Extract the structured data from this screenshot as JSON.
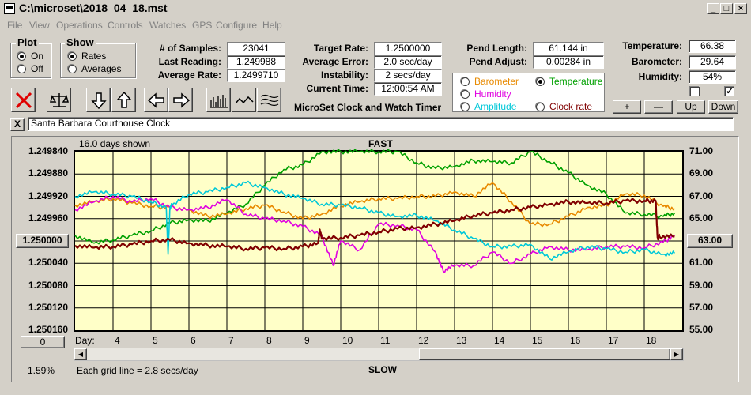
{
  "window": {
    "title": "C:\\microset\\2018_04_18.mst"
  },
  "menu": [
    "File",
    "View",
    "Operations",
    "Controls",
    "Watches",
    "GPS",
    "Configure",
    "Help"
  ],
  "plot_group": {
    "label": "Plot",
    "on": "On",
    "off": "Off",
    "selected": "On"
  },
  "show_group": {
    "label": "Show",
    "rates": "Rates",
    "averages": "Averages",
    "selected": "Rates"
  },
  "stats": {
    "samples_label": "# of Samples:",
    "samples": "23041",
    "last_reading_label": "Last Reading:",
    "last_reading": "1.249988",
    "avg_rate_label": "Average Rate:",
    "avg_rate": "1.2499710",
    "target_rate_label": "Target Rate:",
    "target_rate": "1.2500000",
    "avg_error_label": "Average Error:",
    "avg_error": "2.0 sec/day",
    "instability_label": "Instability:",
    "instability": "2 secs/day",
    "current_time_label": "Current Time:",
    "current_time": "12:00:54 AM",
    "pend_length_label": "Pend Length:",
    "pend_length": "61.144 in",
    "pend_adjust_label": "Pend Adjust:",
    "pend_adjust": "0.00284 in",
    "temperature_label": "Temperature:",
    "temperature": "66.38",
    "barometer_label": "Barometer:",
    "barometer": "29.64",
    "humidity_label": "Humidity:",
    "humidity": "54%"
  },
  "app_caption": "MicroSet Clock and Watch Timer",
  "sensor_options": {
    "barometer": "Barometer",
    "temperature": "Temperature",
    "humidity": "Humidity",
    "amplitude": "Amplitude",
    "clock_rate": "Clock rate",
    "selected": "Temperature",
    "colors": {
      "barometer": "#e88a00",
      "temperature": "#00a000",
      "humidity": "#e000e0",
      "amplitude": "#00c8d8",
      "clock_rate": "#800000"
    }
  },
  "side_buttons": {
    "plus": "+",
    "minus": "—",
    "up": "Up",
    "down": "Down"
  },
  "checkboxes": {
    "left": false,
    "right": true,
    "right_mark": "✓"
  },
  "clock_name": "Santa Barbara Courthouse Clock",
  "close_mark": "X",
  "plot": {
    "days_shown": "16.0 days shown",
    "fast": "FAST",
    "slow": "SLOW",
    "grid_note": "Each grid line = 2.8 secs/day",
    "percent": "1.59%",
    "day_label": "Day:",
    "left_button": "1.250000",
    "right_button": "63.00",
    "bottom_left_button": "0"
  },
  "chart_data": {
    "type": "line",
    "xlabel": "Day:",
    "x_ticks": [
      4,
      5,
      6,
      7,
      8,
      9,
      10,
      11,
      12,
      13,
      14,
      15,
      16,
      17,
      18
    ],
    "xlim": [
      3.0,
      19.0
    ],
    "y_left_ticks": [
      "1.249840",
      "1.249880",
      "1.249920",
      "1.249960",
      "1.250000",
      "1.250040",
      "1.250080",
      "1.250120",
      "1.250160"
    ],
    "ylim_left": [
      1.25016,
      1.24984
    ],
    "y_right_ticks": [
      "71.00",
      "69.00",
      "67.00",
      "65.00",
      "63.00",
      "61.00",
      "59.00",
      "57.00",
      "55.00"
    ],
    "ylim_right": [
      55.0,
      71.0
    ],
    "series": [
      {
        "key": "temperature",
        "color": "#00a000",
        "x": [
          3.0,
          3.5,
          4.0,
          4.5,
          5.0,
          5.5,
          6.0,
          6.5,
          7.0,
          7.5,
          8.0,
          8.5,
          9.0,
          9.5,
          10.0,
          10.5,
          11.0,
          11.5,
          12.0,
          12.5,
          13.0,
          13.5,
          14.0,
          14.5,
          15.0,
          15.5,
          16.0,
          16.5,
          17.0,
          17.5,
          18.0,
          18.5,
          18.8
        ],
        "y": [
          63.5,
          62.8,
          63.1,
          63.5,
          63.9,
          64.6,
          64.9,
          64.8,
          65.5,
          66.3,
          68.0,
          69.4,
          69.8,
          71.0,
          71.0,
          71.0,
          71.0,
          71.0,
          70.0,
          69.5,
          69.7,
          70.2,
          70.1,
          70.0,
          71.0,
          70.1,
          69.1,
          68.0,
          67.2,
          65.5,
          65.4,
          65.2,
          65.5
        ]
      },
      {
        "key": "barometer",
        "color": "#e88a00",
        "x": [
          3.0,
          3.5,
          4.0,
          4.5,
          5.0,
          5.5,
          6.0,
          6.5,
          7.0,
          7.5,
          8.0,
          8.5,
          9.0,
          9.5,
          10.0,
          10.5,
          11.0,
          11.5,
          12.0,
          12.5,
          13.0,
          13.5,
          14.0,
          14.5,
          15.0,
          15.5,
          16.0,
          16.5,
          17.0,
          17.5,
          18.0,
          18.5,
          18.8
        ],
        "y": [
          66.2,
          66.5,
          66.8,
          66.4,
          66.1,
          66.0,
          65.8,
          65.2,
          65.4,
          65.9,
          66.2,
          65.6,
          65.0,
          65.4,
          66.2,
          66.5,
          66.8,
          66.8,
          67.0,
          67.0,
          67.4,
          67.0,
          68.2,
          66.5,
          64.5,
          64.5,
          65.2,
          66.0,
          66.2,
          67.2,
          67.1,
          66.1,
          65.9
        ]
      },
      {
        "key": "humidity",
        "color": "#e000e0",
        "x": [
          3.0,
          3.5,
          4.0,
          4.5,
          5.0,
          5.5,
          6.0,
          6.5,
          7.0,
          7.5,
          8.0,
          8.5,
          9.0,
          9.5,
          9.8,
          10.0,
          10.5,
          11.0,
          11.5,
          12.0,
          12.5,
          12.7,
          13.0,
          13.5,
          14.0,
          14.5,
          15.0,
          15.5,
          16.0,
          16.5,
          17.0,
          17.5,
          18.0,
          18.5,
          18.8
        ],
        "y": [
          65.8,
          66.5,
          67.0,
          66.5,
          66.8,
          66.0,
          65.8,
          66.0,
          66.7,
          65.4,
          65.0,
          64.8,
          64.3,
          63.5,
          60.8,
          63.0,
          62.2,
          64.5,
          64.4,
          64.0,
          62.0,
          60.3,
          60.8,
          60.8,
          62.0,
          61.0,
          61.8,
          62.5,
          62.2,
          62.2,
          62.5,
          62.5,
          62.4,
          62.9,
          63.5
        ]
      },
      {
        "key": "amplitude",
        "color": "#00c8d8",
        "x": [
          3.0,
          3.5,
          4.0,
          4.5,
          5.0,
          5.4,
          5.45,
          5.5,
          5.55,
          6.0,
          6.5,
          7.0,
          7.5,
          8.0,
          8.5,
          9.0,
          9.5,
          10.0,
          10.5,
          11.0,
          11.5,
          12.0,
          12.5,
          13.0,
          13.5,
          14.0,
          14.5,
          15.0,
          15.5,
          16.0,
          16.5,
          17.0,
          17.5,
          18.0,
          18.5,
          18.8
        ],
        "y": [
          67.0,
          67.4,
          67.2,
          67.0,
          66.5,
          66.0,
          61.8,
          66.0,
          66.2,
          67.2,
          67.4,
          67.8,
          68.2,
          67.8,
          67.2,
          66.8,
          66.3,
          66.2,
          66.0,
          65.5,
          65.2,
          65.3,
          64.8,
          64.0,
          63.2,
          62.5,
          62.5,
          62.7,
          61.4,
          62.0,
          62.5,
          62.3,
          62.0,
          62.2,
          61.8,
          61.9
        ]
      },
      {
        "key": "clock_rate",
        "color": "#800000",
        "x": [
          3.0,
          3.5,
          4.0,
          4.5,
          5.0,
          5.5,
          6.0,
          6.5,
          7.0,
          7.5,
          8.0,
          8.5,
          9.0,
          9.4,
          9.45,
          9.5,
          10.0,
          10.5,
          11.0,
          11.5,
          12.0,
          12.5,
          13.0,
          13.5,
          14.0,
          14.5,
          15.0,
          15.5,
          16.0,
          16.5,
          17.0,
          17.5,
          18.0,
          18.3,
          18.35,
          18.4,
          18.8
        ],
        "y": [
          1.250008,
          1.250012,
          1.25001,
          1.250006,
          1.25,
          1.249998,
          1.250004,
          1.250008,
          1.25001,
          1.250014,
          1.250012,
          1.250014,
          1.25001,
          1.250004,
          1.24998,
          1.249996,
          1.249994,
          1.24999,
          1.249984,
          1.249978,
          1.249976,
          1.24997,
          1.249964,
          1.249954,
          1.24995,
          1.249944,
          1.24994,
          1.249934,
          1.24993,
          1.249932,
          1.249932,
          1.249928,
          1.249928,
          1.249928,
          1.249994,
          1.249992,
          1.249992
        ]
      }
    ]
  }
}
